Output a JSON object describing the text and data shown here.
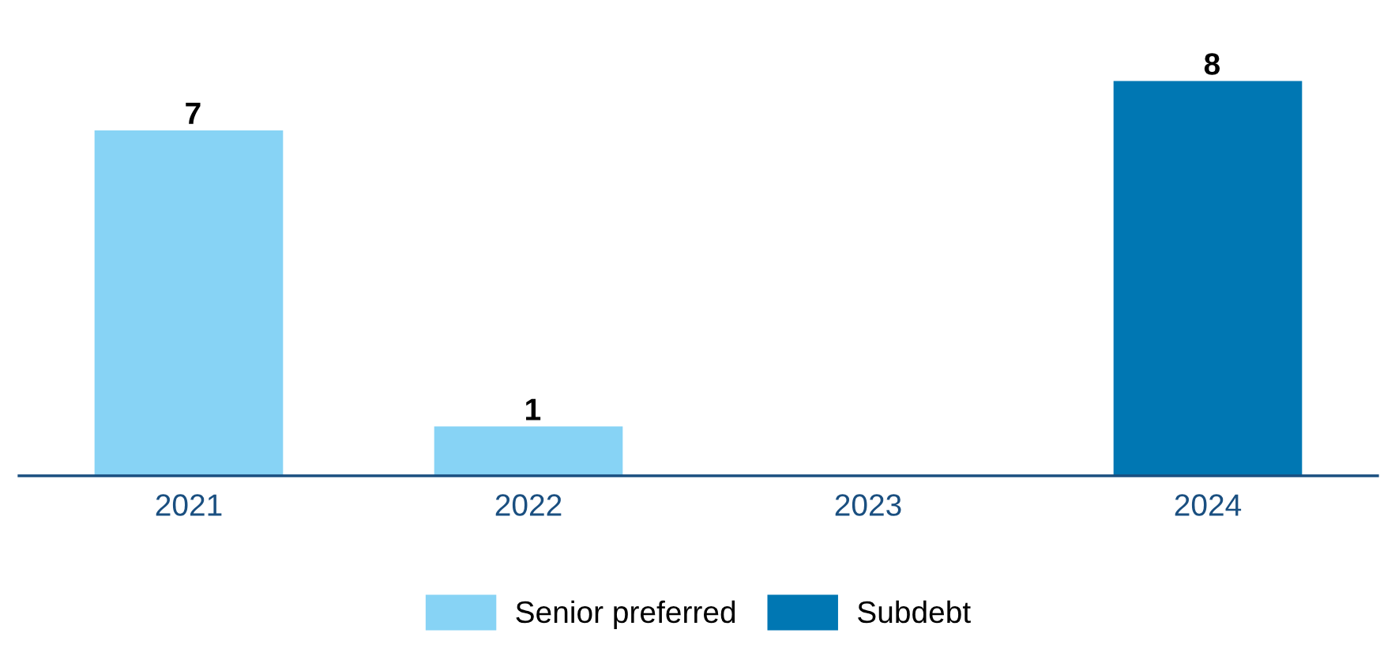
{
  "chart_data": {
    "type": "bar",
    "stacked": true,
    "categories": [
      "2021",
      "2022",
      "2023",
      "2024"
    ],
    "series": [
      {
        "name": "Senior preferred",
        "color": "#87d3f5",
        "values": [
          7,
          1,
          null,
          null
        ]
      },
      {
        "name": "Subdebt",
        "color": "#0077b3",
        "values": [
          null,
          null,
          null,
          8
        ]
      }
    ],
    "data_labels": true,
    "legend": "bottom",
    "grid": false
  }
}
